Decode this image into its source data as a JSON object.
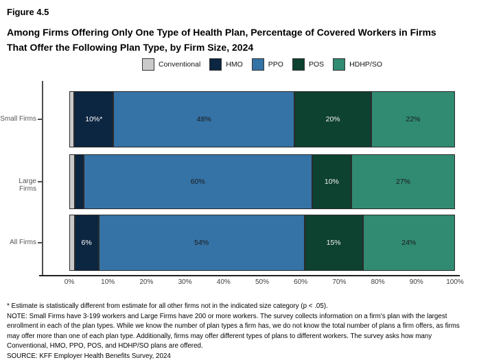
{
  "figure_label": "Figure 4.5",
  "title_line1": "Among Firms Offering Only One Type of Health Plan, Percentage of Covered Workers in Firms",
  "title_line2": "That Offer the Following Plan Type, by Firm Size, 2024",
  "legend": {
    "items": [
      {
        "label": "Conventional",
        "color": "#cacaca"
      },
      {
        "label": "HMO",
        "color": "#0c2540"
      },
      {
        "label": "PPO",
        "color": "#3572a5"
      },
      {
        "label": "POS",
        "color": "#0d4130"
      },
      {
        "label": "HDHP/SO",
        "color": "#318a72"
      }
    ]
  },
  "chart_data": {
    "type": "bar",
    "orientation": "horizontal",
    "stacked": true,
    "unit": "percent",
    "categories": [
      "Small Firms",
      "Large Firms",
      "All Firms"
    ],
    "series": [
      {
        "name": "Conventional",
        "color": "#cacaca",
        "label_color": "#1a1a1a",
        "values": [
          1,
          1,
          1
        ],
        "data_labels": [
          "",
          "",
          ""
        ]
      },
      {
        "name": "HMO",
        "color": "#0c2540",
        "label_color": "#ffffff",
        "values": [
          10,
          2,
          6
        ],
        "data_labels": [
          "10%*",
          "",
          "6%"
        ]
      },
      {
        "name": "PPO",
        "color": "#3572a5",
        "label_color": "#1a1a1a",
        "values": [
          48,
          60,
          54
        ],
        "data_labels": [
          "48%",
          "60%",
          "54%"
        ]
      },
      {
        "name": "POS",
        "color": "#0d4130",
        "label_color": "#f2f2f2",
        "values": [
          20,
          10,
          15
        ],
        "data_labels": [
          "20%",
          "10%",
          "15%"
        ]
      },
      {
        "name": "HDHP/SO",
        "color": "#318a72",
        "label_color": "#1a1a1a",
        "values": [
          22,
          27,
          24
        ],
        "data_labels": [
          "22%",
          "27%",
          "24%"
        ]
      }
    ],
    "x_axis": {
      "min": 0,
      "max": 100,
      "ticks": [
        "0%",
        "10%",
        "20%",
        "30%",
        "40%",
        "50%",
        "60%",
        "70%",
        "80%",
        "90%",
        "100%"
      ]
    },
    "legend_position": "top",
    "grid": false
  },
  "footnotes": {
    "asterisk": "* Estimate is statistically different from estimate for all other firms not in the indicated size category (p < .05).",
    "note": "NOTE: Small Firms have 3-199 workers and Large Firms have 200 or more workers. The survey collects information on a firm's plan with the largest enrollment in each of the plan types. While we know the number of plan types a firm has, we do not know the total number of plans a firm offers, as firms may offer more than one of each plan type. Additionally, firms may offer different types of plans to different workers. The survey asks how many Conventional, HMO, PPO, POS, and HDHP/SO plans are offered.",
    "source": "SOURCE: KFF Employer Health Benefits Survey, 2024"
  }
}
